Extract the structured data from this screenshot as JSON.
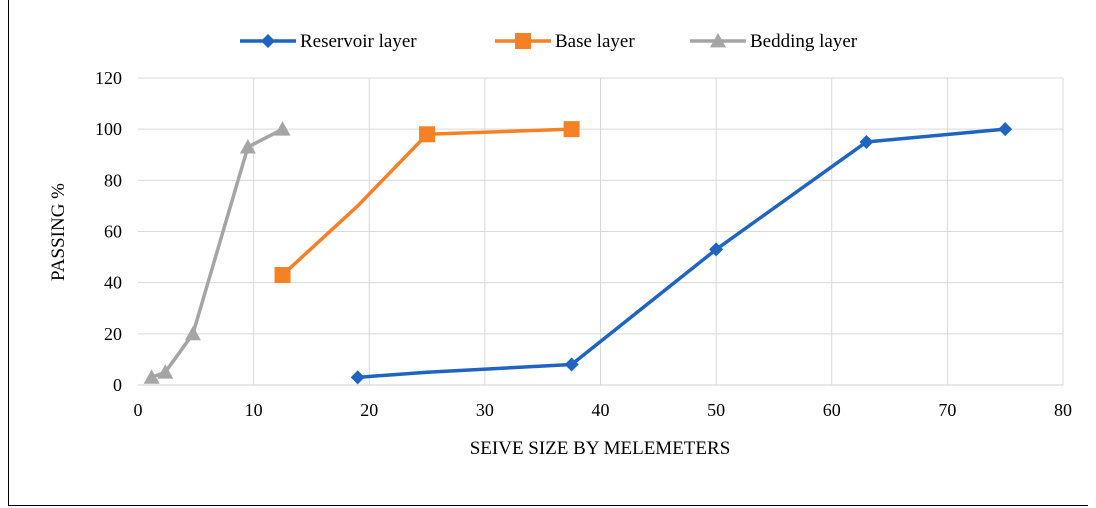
{
  "chart_data": {
    "type": "line",
    "title": "",
    "xlabel": "SEIVE SIZE BY MELEMETERS",
    "ylabel": "PASSING %",
    "xlim": [
      0,
      80
    ],
    "ylim": [
      0,
      120
    ],
    "xticks": [
      0,
      10,
      20,
      30,
      40,
      50,
      60,
      70,
      80
    ],
    "yticks": [
      0,
      20,
      40,
      60,
      80,
      100,
      120
    ],
    "grid": true,
    "legend_position": "top",
    "series": [
      {
        "name": "Reservoir layer",
        "color": "#1f64c0",
        "marker": "diamond",
        "x": [
          19,
          25,
          37.5,
          50,
          63,
          75
        ],
        "y": [
          3,
          5,
          8,
          53,
          95,
          100
        ],
        "marker_shown": [
          true,
          false,
          true,
          true,
          true,
          true
        ]
      },
      {
        "name": "Base layer",
        "color": "#f58025",
        "marker": "square",
        "x": [
          12.5,
          19,
          25,
          37.5
        ],
        "y": [
          43,
          70,
          98,
          100
        ],
        "marker_shown": [
          true,
          false,
          true,
          true
        ]
      },
      {
        "name": "Bedding layer",
        "color": "#a5a5a5",
        "marker": "triangle",
        "x": [
          1.18,
          2.36,
          4.75,
          9.5,
          12.5
        ],
        "y": [
          3,
          5,
          20,
          93,
          100
        ],
        "marker_shown": [
          true,
          true,
          true,
          true,
          true
        ]
      }
    ]
  }
}
